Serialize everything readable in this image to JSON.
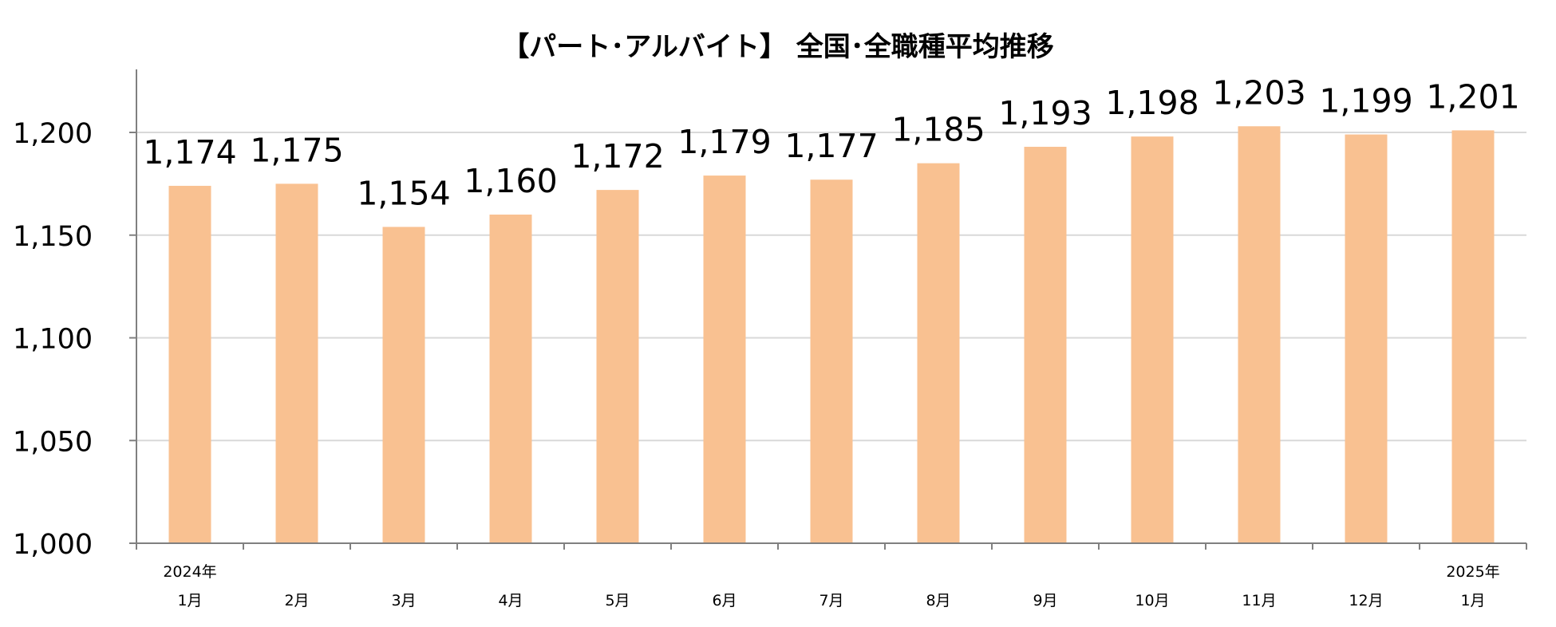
{
  "chart_data": {
    "type": "bar",
    "title": "【パート･アルバイト】 全国･全職種平均推移",
    "categories": [
      {
        "year": "2024年",
        "month": "1月"
      },
      {
        "year": "",
        "month": "2月"
      },
      {
        "year": "",
        "month": "3月"
      },
      {
        "year": "",
        "month": "4月"
      },
      {
        "year": "",
        "month": "5月"
      },
      {
        "year": "",
        "month": "6月"
      },
      {
        "year": "",
        "month": "7月"
      },
      {
        "year": "",
        "month": "8月"
      },
      {
        "year": "",
        "month": "9月"
      },
      {
        "year": "",
        "month": "10月"
      },
      {
        "year": "",
        "month": "11月"
      },
      {
        "year": "",
        "month": "12月"
      },
      {
        "year": "2025年",
        "month": "1月"
      }
    ],
    "values": [
      1174,
      1175,
      1154,
      1160,
      1172,
      1179,
      1177,
      1185,
      1193,
      1198,
      1203,
      1199,
      1201
    ],
    "data_labels": [
      "1,174",
      "1,175",
      "1,154",
      "1,160",
      "1,172",
      "1,179",
      "1,177",
      "1,185",
      "1,193",
      "1,198",
      "1,203",
      "1,199",
      "1,201"
    ],
    "yticks": [
      1000,
      1050,
      1100,
      1150,
      1200
    ],
    "ytick_labels": [
      "1,000",
      "1,050",
      "1,100",
      "1,150",
      "1,200"
    ],
    "ylim": [
      1000,
      1230
    ],
    "grid": true,
    "legend": "none",
    "bar_color": "#F9C191",
    "grid_color": "#D9D9D9",
    "axis_color": "#808080"
  }
}
